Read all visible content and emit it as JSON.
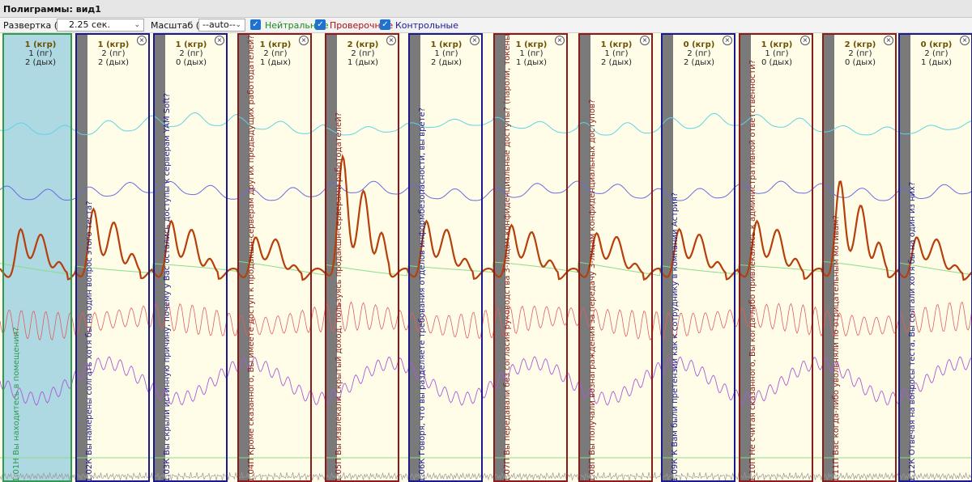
{
  "window": {
    "title": "Полиграммы: вид1"
  },
  "toolbar": {
    "sweep_label": "Развертка (X):",
    "sweep_value": "2.25 сек.",
    "scale_label": "Масштаб (Y):",
    "scale_value": "--auto--",
    "checkboxes": [
      {
        "label": "Нейтральные",
        "checked": true,
        "color": "#1c8a1c"
      },
      {
        "label": "Проверочные",
        "checked": true,
        "color": "#b01010"
      },
      {
        "label": "Контрольные",
        "checked": true,
        "color": "#1a1a9a"
      }
    ]
  },
  "colors": {
    "neutral": "#2e9a52",
    "check": "#8b1a1a",
    "control": "#1a1a8c",
    "resp_upper": "#5fd3e6",
    "resp_lower": "#6a6ae0",
    "gsr": "#b5400c",
    "baseline": "#88dd88",
    "cardio": "#e06060",
    "cardio2": "#a85cd8",
    "chart_bg": "#fffde8",
    "neutral_bg": "#aed8e2",
    "onset_band": "#7a7a7a"
  },
  "questions": [
    {
      "id": "1.01Н",
      "type": "neutral",
      "text": "Вы находитесь в помещении?",
      "h1": "1 (кгр)",
      "h2": "1 (пг)",
      "h3": "2 (дых)"
    },
    {
      "id": "1.02К",
      "type": "control",
      "text": "Вы намерены солгать хотя бы на один вопрос этого теста?",
      "h1": "1 (кгр)",
      "h2": "2 (пг)",
      "h3": "2 (дых)"
    },
    {
      "id": "1.03К",
      "type": "control",
      "text": "Вы скрыли истинную причину, почему у Вас остались доступы к серверам YAM Soft?",
      "h1": "1 (кгр)",
      "h2": "2 (пг)",
      "h3": "0 (дых)"
    },
    {
      "id": "1.04П",
      "type": "check",
      "text": "Кроме сказанного, Вы имеете доступ к продакшн-серверам других предыдущих работодателей?",
      "h1": "1 (кгр)",
      "h2": "2 (пг)",
      "h3": "1 (дых)"
    },
    {
      "id": "1.05П",
      "type": "check",
      "text": "Вы извлекали скрытый доход, пользуясь продакшн-серверами работодателей?",
      "h1": "2 (кгр)",
      "h2": "2 (пг)",
      "h3": "1 (дых)"
    },
    {
      "id": "1.06К",
      "type": "control",
      "text": "Говоря, что вы разделяете требования отделов информбезопасности, вы врете?",
      "h1": "1 (кгр)",
      "h2": "1 (пг)",
      "h3": "2 (дых)"
    },
    {
      "id": "1.07П",
      "type": "check",
      "text": "Вы передавали без согласия руководства 3-лицам конфиденциальные доступы? (пароли, токены, ключи, конфигурации",
      "h1": "1 (кгр)",
      "h2": "1 (пг)",
      "h3": "1 (дых)"
    },
    {
      "id": "1.08П",
      "type": "check",
      "text": "Вы получали вознаграждения за передачу 3-лицам конфиденциальных доступов?",
      "h1": "1 (кгр)",
      "h2": "1 (пг)",
      "h3": "2 (дых)"
    },
    {
      "id": "1.09К",
      "type": "control",
      "text": "К Вам были претензии как к сотруднику в компании Астрия?",
      "h1": "0 (кгр)",
      "h2": "2 (пг)",
      "h3": "2 (дых)"
    },
    {
      "id": "1.10П",
      "type": "check",
      "text": "Не считая сказанного, Вы когда-либо привлекались к административной ответственности?",
      "h1": "1 (кгр)",
      "h2": "1 (пг)",
      "h3": "0 (дых)"
    },
    {
      "id": "1.11П",
      "type": "check",
      "text": "Вас когда-либо увольняли по отрицательным мотивам?",
      "h1": "2 (кгр)",
      "h2": "2 (пг)",
      "h3": "0 (дых)"
    },
    {
      "id": "1.12К",
      "type": "control",
      "text": "Отвечая на вопросы теста, Вы солгали хотя бы на один из них?",
      "h1": "0 (кгр)",
      "h2": "2 (пг)",
      "h3": "1 (дых)"
    }
  ]
}
